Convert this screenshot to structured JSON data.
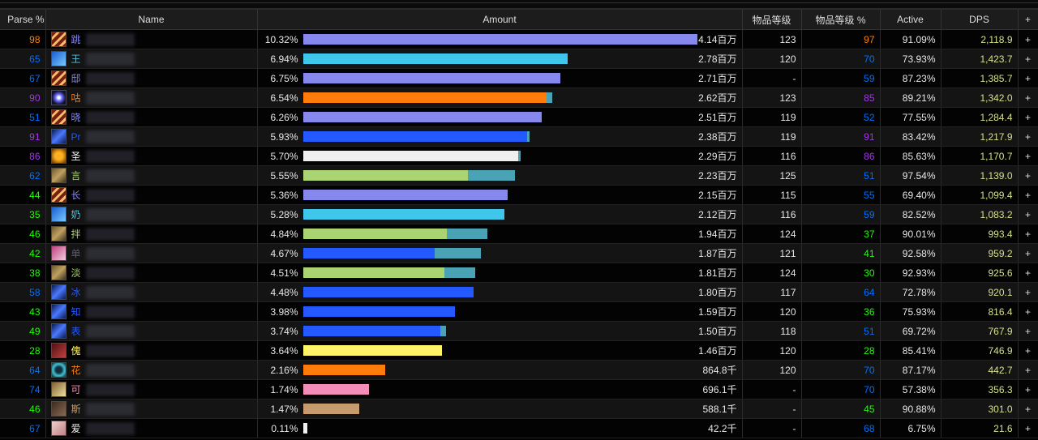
{
  "headers": {
    "parse": "Parse %",
    "name": "Name",
    "amount": "Amount",
    "ilvl": "物品等级",
    "ilvl_pct": "物品等级 %",
    "active": "Active",
    "dps": "DPS",
    "add": "+"
  },
  "max_pct": 10.32,
  "rows": [
    {
      "parse": "98",
      "parse_color": "#ff8000",
      "name": "跳",
      "icon": "warlock",
      "color": "#8788ee",
      "pct": "10.32%",
      "pct_value": 10.32,
      "primary_share": 1,
      "amount": "4.14百万",
      "ilvl": "123",
      "ilvl_pct": "97",
      "ilvl_pct_color": "#ff8000",
      "active": "91.09%",
      "dps": "2,118.9"
    },
    {
      "parse": "65",
      "parse_color": "#0070ff",
      "name": "王",
      "icon": "mage",
      "color": "#3fc7eb",
      "pct": "6.94%",
      "pct_value": 6.94,
      "primary_share": 1,
      "amount": "2.78百万",
      "ilvl": "120",
      "ilvl_pct": "70",
      "ilvl_pct_color": "#0070ff",
      "active": "73.93%",
      "dps": "1,423.7"
    },
    {
      "parse": "67",
      "parse_color": "#0070ff",
      "name": "邸",
      "icon": "warlock",
      "color": "#8788ee",
      "pct": "6.75%",
      "pct_value": 6.75,
      "primary_share": 1,
      "amount": "2.71百万",
      "ilvl": "-",
      "ilvl_pct": "59",
      "ilvl_pct_color": "#0070ff",
      "active": "87.23%",
      "dps": "1,385.7"
    },
    {
      "parse": "90",
      "parse_color": "#a335ee",
      "name": "咕",
      "icon": "druid",
      "color": "#ff7c0a",
      "pct": "6.54%",
      "pct_value": 6.54,
      "primary_share": 0.977,
      "amount": "2.62百万",
      "ilvl": "123",
      "ilvl_pct": "85",
      "ilvl_pct_color": "#a335ee",
      "active": "89.21%",
      "dps": "1,342.0"
    },
    {
      "parse": "51",
      "parse_color": "#0070ff",
      "name": "晓",
      "icon": "warlock",
      "color": "#8788ee",
      "pct": "6.26%",
      "pct_value": 6.26,
      "primary_share": 1,
      "amount": "2.51百万",
      "ilvl": "119",
      "ilvl_pct": "52",
      "ilvl_pct_color": "#0070ff",
      "active": "77.55%",
      "dps": "1,284.4"
    },
    {
      "parse": "91",
      "parse_color": "#a335ee",
      "name": "Pr",
      "icon": "shaman",
      "color": "#2459ff",
      "pct": "5.93%",
      "pct_value": 5.93,
      "primary_share": 0.99,
      "amount": "2.38百万",
      "ilvl": "119",
      "ilvl_pct": "91",
      "ilvl_pct_color": "#a335ee",
      "active": "83.42%",
      "dps": "1,217.9"
    },
    {
      "parse": "86",
      "parse_color": "#a335ee",
      "name": "圣",
      "icon": "priest",
      "color": "#f0f0f0",
      "pct": "5.70%",
      "pct_value": 5.7,
      "primary_share": 0.99,
      "amount": "2.29百万",
      "ilvl": "116",
      "ilvl_pct": "86",
      "ilvl_pct_color": "#a335ee",
      "active": "85.63%",
      "dps": "1,170.7"
    },
    {
      "parse": "62",
      "parse_color": "#0070ff",
      "name": "言",
      "icon": "hunter",
      "color": "#aad372",
      "pct": "5.55%",
      "pct_value": 5.55,
      "primary_share": 0.78,
      "amount": "2.23百万",
      "ilvl": "125",
      "ilvl_pct": "51",
      "ilvl_pct_color": "#0070ff",
      "active": "97.54%",
      "dps": "1,139.0"
    },
    {
      "parse": "44",
      "parse_color": "#1eff00",
      "name": "长",
      "icon": "warlock",
      "color": "#8788ee",
      "pct": "5.36%",
      "pct_value": 5.36,
      "primary_share": 1,
      "amount": "2.15百万",
      "ilvl": "115",
      "ilvl_pct": "55",
      "ilvl_pct_color": "#0070ff",
      "active": "69.40%",
      "dps": "1,099.4"
    },
    {
      "parse": "35",
      "parse_color": "#1eff00",
      "name": "奶",
      "icon": "mage",
      "color": "#3fc7eb",
      "pct": "5.28%",
      "pct_value": 5.28,
      "primary_share": 1,
      "amount": "2.12百万",
      "ilvl": "116",
      "ilvl_pct": "59",
      "ilvl_pct_color": "#0070ff",
      "active": "82.52%",
      "dps": "1,083.2"
    },
    {
      "parse": "46",
      "parse_color": "#1eff00",
      "name": "拌",
      "icon": "hunter",
      "color": "#aad372",
      "pct": "4.84%",
      "pct_value": 4.84,
      "primary_share": 0.78,
      "amount": "1.94百万",
      "ilvl": "124",
      "ilvl_pct": "37",
      "ilvl_pct_color": "#1eff00",
      "active": "90.01%",
      "dps": "993.4"
    },
    {
      "parse": "42",
      "parse_color": "#1eff00",
      "name": "单",
      "icon": "shaman-resto",
      "color": "#2459ff",
      "pct": "4.67%",
      "pct_value": 4.67,
      "primary_share": 0.74,
      "amount": "1.87百万",
      "ilvl": "121",
      "ilvl_pct": "41",
      "ilvl_pct_color": "#1eff00",
      "active": "92.58%",
      "dps": "959.2"
    },
    {
      "parse": "38",
      "parse_color": "#1eff00",
      "name": "淡",
      "icon": "hunter",
      "color": "#aad372",
      "pct": "4.51%",
      "pct_value": 4.51,
      "primary_share": 0.82,
      "amount": "1.81百万",
      "ilvl": "124",
      "ilvl_pct": "30",
      "ilvl_pct_color": "#1eff00",
      "active": "92.93%",
      "dps": "925.6"
    },
    {
      "parse": "58",
      "parse_color": "#0070ff",
      "name": "冰",
      "icon": "shaman",
      "color": "#2459ff",
      "pct": "4.48%",
      "pct_value": 4.48,
      "primary_share": 1,
      "amount": "1.80百万",
      "ilvl": "117",
      "ilvl_pct": "64",
      "ilvl_pct_color": "#0070ff",
      "active": "72.78%",
      "dps": "920.1"
    },
    {
      "parse": "43",
      "parse_color": "#1eff00",
      "name": "知",
      "icon": "shaman",
      "color": "#2459ff",
      "pct": "3.98%",
      "pct_value": 3.98,
      "primary_share": 1,
      "amount": "1.59百万",
      "ilvl": "120",
      "ilvl_pct": "36",
      "ilvl_pct_color": "#1eff00",
      "active": "75.93%",
      "dps": "816.4"
    },
    {
      "parse": "49",
      "parse_color": "#1eff00",
      "name": "表",
      "icon": "shaman",
      "color": "#2459ff",
      "pct": "3.74%",
      "pct_value": 3.74,
      "primary_share": 0.96,
      "amount": "1.50百万",
      "ilvl": "118",
      "ilvl_pct": "51",
      "ilvl_pct_color": "#0070ff",
      "active": "69.72%",
      "dps": "767.9"
    },
    {
      "parse": "28",
      "parse_color": "#1eff00",
      "name": "傀",
      "icon": "rogue",
      "color": "#fff468",
      "pct": "3.64%",
      "pct_value": 3.64,
      "primary_share": 1,
      "amount": "1.46百万",
      "ilvl": "120",
      "ilvl_pct": "28",
      "ilvl_pct_color": "#1eff00",
      "active": "85.41%",
      "dps": "746.9"
    },
    {
      "parse": "64",
      "parse_color": "#0070ff",
      "name": "花",
      "icon": "druid-feral",
      "color": "#ff7c0a",
      "pct": "2.16%",
      "pct_value": 2.16,
      "primary_share": 1,
      "amount": "864.8千",
      "ilvl": "120",
      "ilvl_pct": "70",
      "ilvl_pct_color": "#0070ff",
      "active": "87.17%",
      "dps": "442.7"
    },
    {
      "parse": "74",
      "parse_color": "#0070ff",
      "name": "可",
      "icon": "paladin",
      "color": "#f48cba",
      "pct": "1.74%",
      "pct_value": 1.74,
      "primary_share": 1,
      "amount": "696.1千",
      "ilvl": "-",
      "ilvl_pct": "70",
      "ilvl_pct_color": "#0070ff",
      "active": "57.38%",
      "dps": "356.3"
    },
    {
      "parse": "46",
      "parse_color": "#1eff00",
      "name": "斯",
      "icon": "warrior",
      "color": "#c69b6d",
      "pct": "1.47%",
      "pct_value": 1.47,
      "primary_share": 1,
      "amount": "588.1千",
      "ilvl": "-",
      "ilvl_pct": "45",
      "ilvl_pct_color": "#1eff00",
      "active": "90.88%",
      "dps": "301.0"
    },
    {
      "parse": "67",
      "parse_color": "#0070ff",
      "name": "爱",
      "icon": "priest-holy",
      "color": "#f0f0f0",
      "pct": "0.11%",
      "pct_value": 0.11,
      "primary_share": 1,
      "amount": "42.2千",
      "ilvl": "-",
      "ilvl_pct": "68",
      "ilvl_pct_color": "#0070ff",
      "active": "6.75%",
      "dps": "21.6"
    }
  ],
  "secondary_bar_color": "#4aa3b5",
  "dps_color": "#d8e08a"
}
